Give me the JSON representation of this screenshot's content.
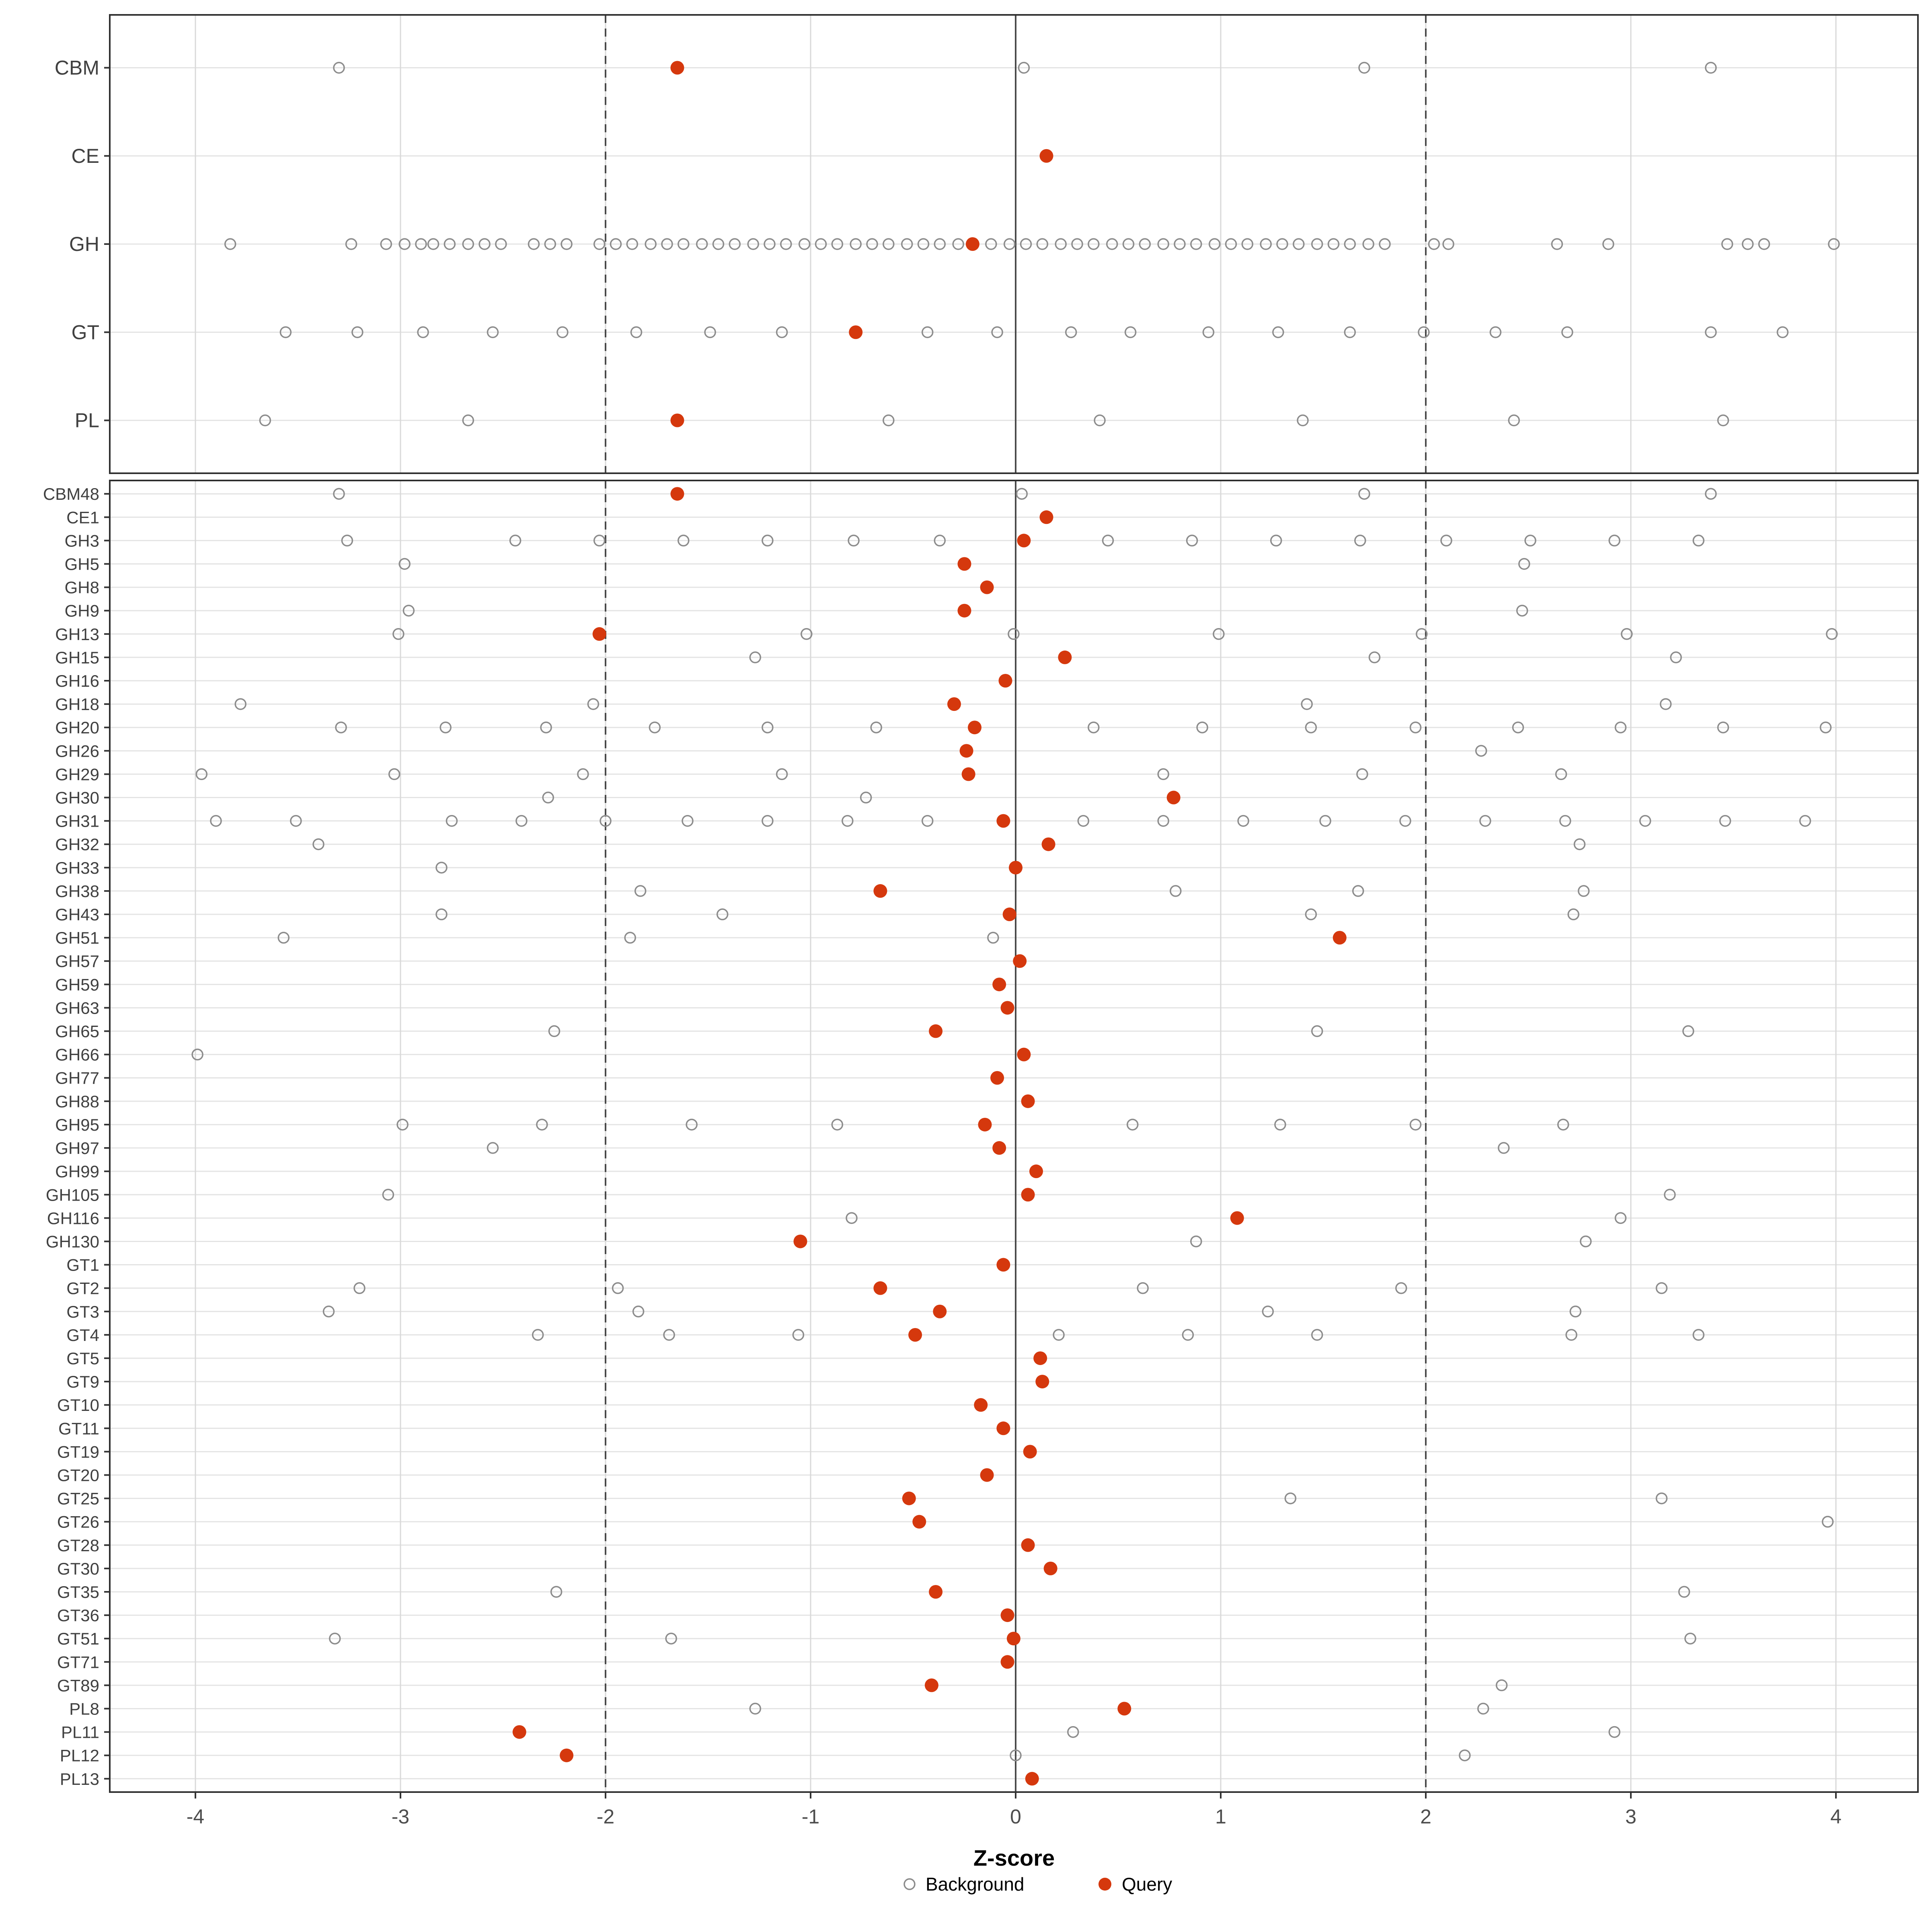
{
  "figure": {
    "xlabel": "Z-score",
    "x_ticks": [
      "-4",
      "-3",
      "-2",
      "-1",
      "0",
      "1",
      "2",
      "3",
      "4"
    ],
    "x_tick_values": [
      -4,
      -3,
      -2,
      -1,
      0,
      1,
      2,
      3,
      4
    ]
  },
  "legend": {
    "background_label": "Background",
    "query_label": "Query"
  },
  "colors": {
    "query": "#D5380D",
    "background_stroke": "#8C8C8C",
    "grid_major": "#D9D9D9",
    "grid_row": "#E4E4E4",
    "ref_line": "#4A4A4A",
    "panel_border": "#2F2F2F",
    "tick_text": "#4D4D4D",
    "label_text": "#404040"
  },
  "chart_data": [
    {
      "type": "scatter",
      "panel": "cazyme-classes",
      "x_range": [
        -4.42,
        4.4
      ],
      "ref_lines": {
        "solid": 0,
        "dashed": [
          -2,
          2
        ]
      },
      "legend_position": "bottom",
      "grid": true,
      "series_names": [
        "Background",
        "Query"
      ],
      "rows": [
        {
          "label": "CBM",
          "query": -1.65,
          "background": [
            -3.3,
            0.04,
            1.7,
            3.39
          ]
        },
        {
          "label": "CE",
          "query": 0.15,
          "background": []
        },
        {
          "label": "GH",
          "query": -0.21,
          "background": [
            -3.83,
            -3.24,
            -3.07,
            -2.98,
            -2.9,
            -2.84,
            -2.76,
            -2.67,
            -2.59,
            -2.51,
            -2.35,
            -2.27,
            -2.19,
            -2.03,
            -1.95,
            -1.87,
            -1.78,
            -1.7,
            -1.62,
            -1.53,
            -1.45,
            -1.37,
            -1.28,
            -1.2,
            -1.12,
            -1.03,
            -0.95,
            -0.87,
            -0.78,
            -0.7,
            -0.62,
            -0.53,
            -0.45,
            -0.37,
            -0.28,
            -0.12,
            -0.03,
            0.05,
            0.13,
            0.22,
            0.3,
            0.38,
            0.47,
            0.55,
            0.63,
            0.72,
            0.8,
            0.88,
            0.97,
            1.05,
            1.13,
            1.22,
            1.3,
            1.38,
            1.47,
            1.55,
            1.63,
            1.72,
            1.8,
            2.04,
            2.11,
            2.64,
            2.89,
            3.47,
            3.57,
            3.65,
            3.99
          ]
        },
        {
          "label": "GT",
          "query": -0.78,
          "background": [
            -3.56,
            -3.21,
            -2.89,
            -2.55,
            -2.21,
            -1.85,
            -1.49,
            -1.14,
            -0.43,
            -0.09,
            0.27,
            0.56,
            0.94,
            1.28,
            1.63,
            1.99,
            2.34,
            2.69,
            3.39,
            3.74
          ]
        },
        {
          "label": "PL",
          "query": -1.65,
          "background": [
            -3.66,
            -2.67,
            -0.62,
            0.41,
            1.4,
            2.43,
            3.45
          ]
        }
      ]
    },
    {
      "type": "scatter",
      "panel": "cazyme-families",
      "x_range": [
        -4.42,
        4.4
      ],
      "ref_lines": {
        "solid": 0,
        "dashed": [
          -2,
          2
        ]
      },
      "grid": true,
      "series_names": [
        "Background",
        "Query"
      ],
      "rows": [
        {
          "label": "CBM48",
          "query": -1.65,
          "background": [
            -3.3,
            0.03,
            1.7,
            3.39
          ]
        },
        {
          "label": "CE1",
          "query": 0.15,
          "background": []
        },
        {
          "label": "GH3",
          "query": 0.04,
          "background": [
            -3.26,
            -2.44,
            -2.03,
            -1.62,
            -1.21,
            -0.79,
            -0.37,
            0.45,
            0.86,
            1.27,
            1.68,
            2.1,
            2.51,
            2.92,
            3.33
          ]
        },
        {
          "label": "GH5",
          "query": -0.25,
          "background": [
            -2.98,
            2.48
          ]
        },
        {
          "label": "GH8",
          "query": -0.14,
          "background": []
        },
        {
          "label": "GH9",
          "query": -0.25,
          "background": [
            -2.96,
            2.47
          ]
        },
        {
          "label": "GH13",
          "query": -2.03,
          "background": [
            -3.01,
            -1.02,
            -0.01,
            0.99,
            1.98,
            2.98,
            3.98
          ]
        },
        {
          "label": "GH15",
          "query": 0.24,
          "background": [
            -1.27,
            1.75,
            3.22
          ]
        },
        {
          "label": "GH16",
          "query": -0.05,
          "background": []
        },
        {
          "label": "GH18",
          "query": -0.3,
          "background": [
            -3.78,
            -2.06,
            1.42,
            3.17
          ]
        },
        {
          "label": "GH20",
          "query": -0.2,
          "background": [
            -3.29,
            -2.78,
            -2.29,
            -1.76,
            -1.21,
            -0.68,
            0.38,
            0.91,
            1.44,
            1.95,
            2.45,
            2.95,
            3.45,
            3.95
          ]
        },
        {
          "label": "GH26",
          "query": -0.24,
          "background": [
            2.27
          ]
        },
        {
          "label": "GH29",
          "query": -0.23,
          "background": [
            -3.97,
            -3.03,
            -2.11,
            -1.14,
            0.72,
            1.69,
            2.66
          ]
        },
        {
          "label": "GH30",
          "query": 0.77,
          "background": [
            -2.28,
            -0.73
          ]
        },
        {
          "label": "GH31",
          "query": -0.06,
          "background": [
            -3.9,
            -3.51,
            -2.75,
            -2.41,
            -2.0,
            -1.6,
            -1.21,
            -0.82,
            -0.43,
            0.33,
            0.72,
            1.11,
            1.51,
            1.9,
            2.29,
            2.68,
            3.07,
            3.46,
            3.85
          ]
        },
        {
          "label": "GH32",
          "query": 0.16,
          "background": [
            -3.4,
            2.75
          ]
        },
        {
          "label": "GH33",
          "query": 0.0,
          "background": [
            -2.8
          ]
        },
        {
          "label": "GH38",
          "query": -0.66,
          "background": [
            -1.83,
            0.78,
            1.67,
            2.77
          ]
        },
        {
          "label": "GH43",
          "query": -0.03,
          "background": [
            -2.8,
            -1.43,
            1.44,
            2.72
          ]
        },
        {
          "label": "GH51",
          "query": 1.58,
          "background": [
            -3.57,
            -1.88,
            -0.11
          ]
        },
        {
          "label": "GH57",
          "query": 0.02,
          "background": []
        },
        {
          "label": "GH59",
          "query": -0.08,
          "background": []
        },
        {
          "label": "GH63",
          "query": -0.04,
          "background": []
        },
        {
          "label": "GH65",
          "query": -0.39,
          "background": [
            -2.25,
            1.47,
            3.28
          ]
        },
        {
          "label": "GH66",
          "query": 0.04,
          "background": [
            -3.99
          ]
        },
        {
          "label": "GH77",
          "query": -0.09,
          "background": []
        },
        {
          "label": "GH88",
          "query": 0.06,
          "background": []
        },
        {
          "label": "GH95",
          "query": -0.15,
          "background": [
            -2.99,
            -2.31,
            -1.58,
            -0.87,
            0.57,
            1.29,
            1.95,
            2.67
          ]
        },
        {
          "label": "GH97",
          "query": -0.08,
          "background": [
            -2.55,
            2.38
          ]
        },
        {
          "label": "GH99",
          "query": 0.1,
          "background": []
        },
        {
          "label": "GH105",
          "query": 0.06,
          "background": [
            -3.06,
            3.19
          ]
        },
        {
          "label": "GH116",
          "query": 1.08,
          "background": [
            -0.8,
            2.95
          ]
        },
        {
          "label": "GH130",
          "query": -1.05,
          "background": [
            0.88,
            2.78
          ]
        },
        {
          "label": "GT1",
          "query": -0.06,
          "background": []
        },
        {
          "label": "GT2",
          "query": -0.66,
          "background": [
            -3.2,
            -1.94,
            0.62,
            1.88,
            3.15
          ]
        },
        {
          "label": "GT3",
          "query": -0.37,
          "background": [
            -3.35,
            -1.84,
            1.23,
            2.73
          ]
        },
        {
          "label": "GT4",
          "query": -0.49,
          "background": [
            -2.33,
            -1.69,
            -1.06,
            0.21,
            0.84,
            1.47,
            2.71,
            3.33
          ]
        },
        {
          "label": "GT5",
          "query": 0.12,
          "background": []
        },
        {
          "label": "GT9",
          "query": 0.13,
          "background": []
        },
        {
          "label": "GT10",
          "query": -0.17,
          "background": []
        },
        {
          "label": "GT11",
          "query": -0.06,
          "background": []
        },
        {
          "label": "GT19",
          "query": 0.07,
          "background": []
        },
        {
          "label": "GT20",
          "query": -0.14,
          "background": []
        },
        {
          "label": "GT25",
          "query": -0.52,
          "background": [
            1.34,
            3.15
          ]
        },
        {
          "label": "GT26",
          "query": -0.47,
          "background": [
            3.96
          ]
        },
        {
          "label": "GT28",
          "query": 0.06,
          "background": []
        },
        {
          "label": "GT30",
          "query": 0.17,
          "background": []
        },
        {
          "label": "GT35",
          "query": -0.39,
          "background": [
            -2.24,
            3.26
          ]
        },
        {
          "label": "GT36",
          "query": -0.04,
          "background": []
        },
        {
          "label": "GT51",
          "query": -0.01,
          "background": [
            -3.32,
            -1.68,
            3.29
          ]
        },
        {
          "label": "GT71",
          "query": -0.04,
          "background": []
        },
        {
          "label": "GT89",
          "query": -0.41,
          "background": [
            2.37
          ]
        },
        {
          "label": "PL8",
          "query": 0.53,
          "background": [
            -1.27,
            2.28
          ]
        },
        {
          "label": "PL11",
          "query": -2.42,
          "background": [
            0.28,
            2.92
          ]
        },
        {
          "label": "PL12",
          "query": -2.19,
          "background": [
            0.0,
            2.19
          ]
        },
        {
          "label": "PL13",
          "query": 0.08,
          "background": []
        }
      ]
    }
  ]
}
